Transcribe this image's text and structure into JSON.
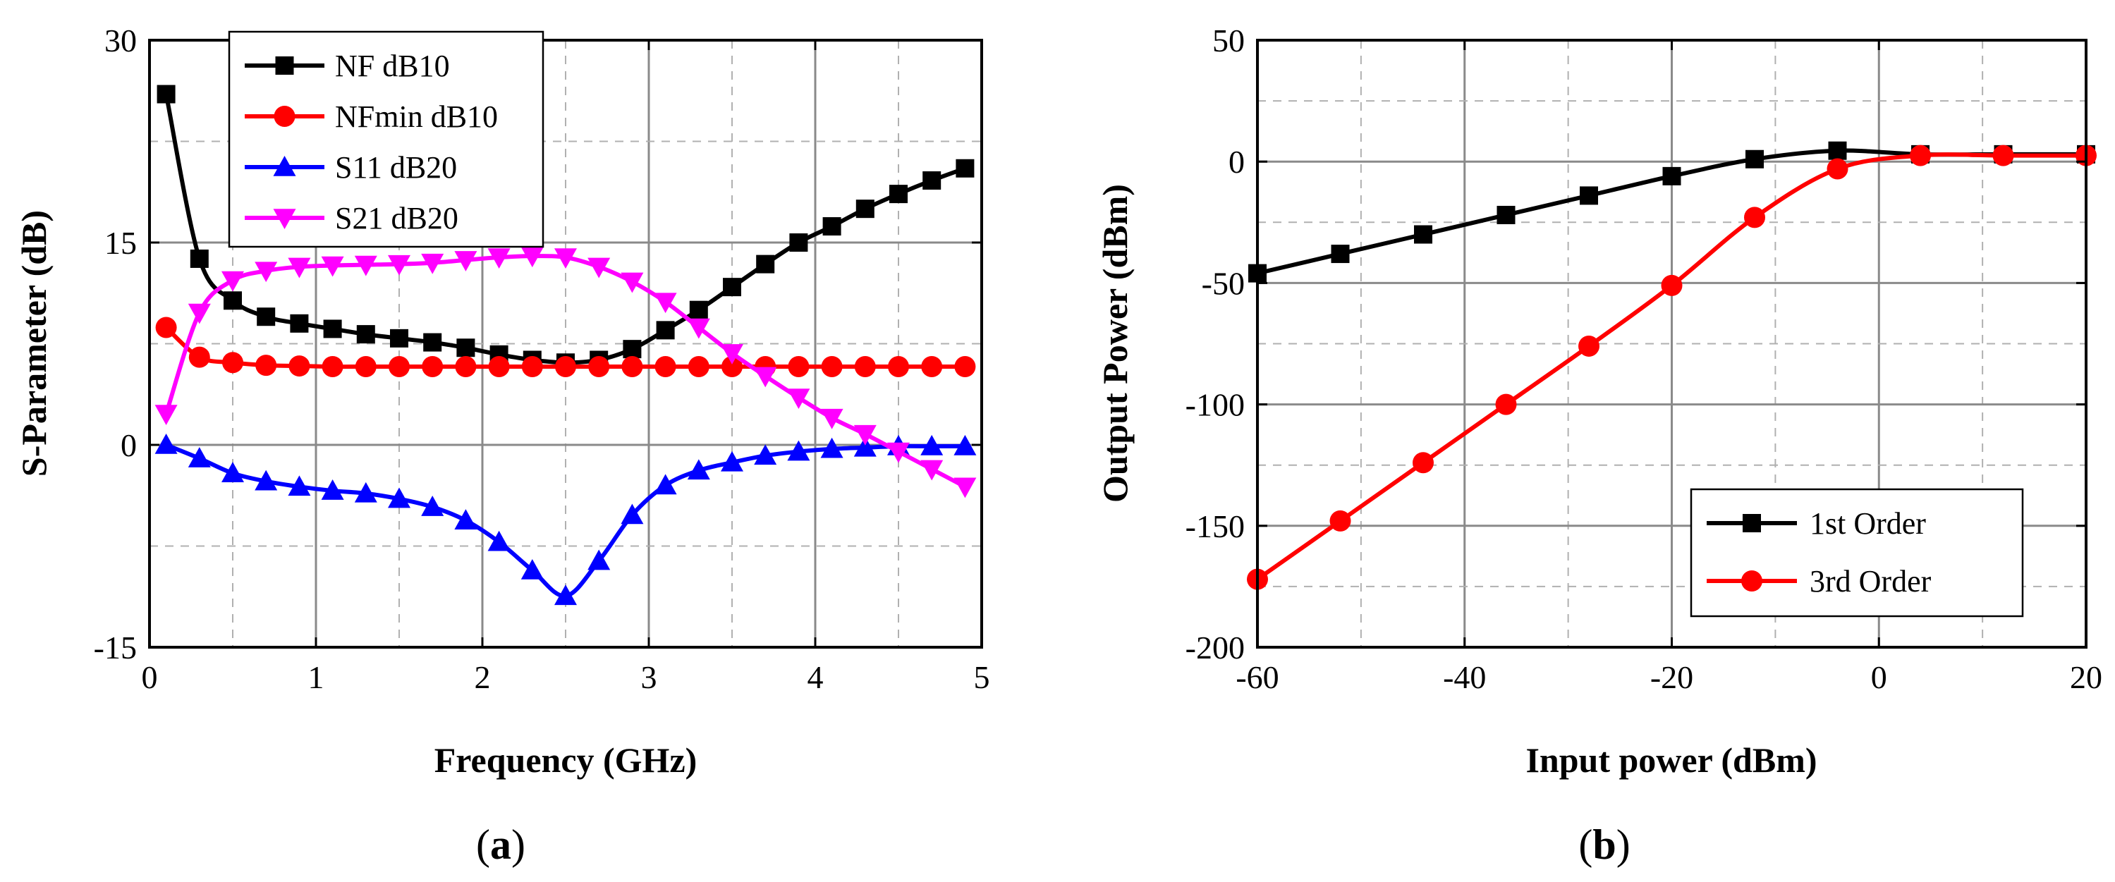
{
  "chart_data": [
    {
      "panel_label": "a",
      "type": "line",
      "title": "",
      "xlabel": "Frequency (GHz)",
      "ylabel": "S-Parameter (dB)",
      "xlim": [
        0,
        5
      ],
      "ylim": [
        -15,
        30
      ],
      "xticks": [
        0,
        1,
        2,
        3,
        4,
        5
      ],
      "xtick_labels": [
        "0",
        "1",
        "2",
        "3",
        "4",
        "5"
      ],
      "yticks": [
        -15,
        0,
        15,
        30
      ],
      "ytick_labels": [
        "-15",
        "0",
        "15",
        "30"
      ],
      "minor_x_step": 0.5,
      "minor_y_step": 7.5,
      "grid": true,
      "legend_position": "top-left",
      "series": [
        {
          "name": "NF dB10",
          "color": "#000000",
          "marker": "square",
          "x": [
            0.1,
            0.3,
            0.5,
            0.7,
            0.9,
            1.1,
            1.3,
            1.5,
            1.7,
            1.9,
            2.1,
            2.3,
            2.5,
            2.7,
            2.9,
            3.1,
            3.3,
            3.5,
            3.7,
            3.9,
            4.1,
            4.3,
            4.5,
            4.7,
            4.9
          ],
          "values": [
            26.0,
            13.8,
            10.7,
            9.5,
            9.0,
            8.6,
            8.2,
            7.9,
            7.6,
            7.2,
            6.7,
            6.3,
            6.1,
            6.3,
            7.1,
            8.5,
            10.0,
            11.7,
            13.4,
            15.0,
            16.2,
            17.5,
            18.6,
            19.6,
            20.5
          ]
        },
        {
          "name": "NFmin dB10",
          "color": "#ff0000",
          "marker": "circle",
          "x": [
            0.1,
            0.3,
            0.5,
            0.7,
            0.9,
            1.1,
            1.3,
            1.5,
            1.7,
            1.9,
            2.1,
            2.3,
            2.5,
            2.7,
            2.9,
            3.1,
            3.3,
            3.5,
            3.7,
            3.9,
            4.1,
            4.3,
            4.5,
            4.7,
            4.9
          ],
          "values": [
            8.7,
            6.5,
            6.1,
            5.9,
            5.85,
            5.8,
            5.8,
            5.8,
            5.8,
            5.8,
            5.8,
            5.8,
            5.8,
            5.8,
            5.8,
            5.8,
            5.8,
            5.8,
            5.8,
            5.8,
            5.8,
            5.8,
            5.8,
            5.8,
            5.8
          ]
        },
        {
          "name": "S11 dB20",
          "color": "#0000ff",
          "marker": "triangle-up",
          "x": [
            0.1,
            0.3,
            0.5,
            0.7,
            0.9,
            1.1,
            1.3,
            1.5,
            1.7,
            1.9,
            2.1,
            2.3,
            2.5,
            2.7,
            2.9,
            3.1,
            3.3,
            3.5,
            3.7,
            3.9,
            4.1,
            4.3,
            4.5,
            4.7,
            4.9
          ],
          "values": [
            0.0,
            -1.0,
            -2.1,
            -2.7,
            -3.1,
            -3.4,
            -3.6,
            -4.0,
            -4.6,
            -5.6,
            -7.2,
            -9.3,
            -11.2,
            -8.6,
            -5.2,
            -3.0,
            -1.9,
            -1.3,
            -0.8,
            -0.5,
            -0.3,
            -0.2,
            -0.1,
            -0.1,
            -0.1
          ]
        },
        {
          "name": "S21 dB20",
          "color": "#ff00ff",
          "marker": "triangle-down",
          "x": [
            0.1,
            0.3,
            0.5,
            0.7,
            0.9,
            1.1,
            1.3,
            1.5,
            1.7,
            1.9,
            2.1,
            2.3,
            2.5,
            2.7,
            2.9,
            3.1,
            3.3,
            3.5,
            3.7,
            3.9,
            4.1,
            4.3,
            4.5,
            4.7,
            4.9
          ],
          "values": [
            2.3,
            9.8,
            12.2,
            12.9,
            13.2,
            13.3,
            13.35,
            13.4,
            13.5,
            13.7,
            13.9,
            14.0,
            13.9,
            13.2,
            12.1,
            10.6,
            8.7,
            6.8,
            5.1,
            3.5,
            2.0,
            0.8,
            -0.5,
            -1.8,
            -3.1
          ]
        }
      ]
    },
    {
      "panel_label": "b",
      "type": "line",
      "title": "",
      "xlabel": "Input power (dBm)",
      "ylabel": "Output Power (dBm)",
      "xlim": [
        -60,
        20
      ],
      "ylim": [
        -200,
        50
      ],
      "xticks": [
        -60,
        -40,
        -20,
        0,
        20
      ],
      "xtick_labels": [
        "-60",
        "-40",
        "-20",
        "0",
        "20"
      ],
      "yticks": [
        -200,
        -150,
        -100,
        -50,
        0,
        50
      ],
      "ytick_labels": [
        "-200",
        "-150",
        "-100",
        "-50",
        "0",
        "50"
      ],
      "minor_x_step": 10,
      "minor_y_step": 25,
      "grid": true,
      "legend_position": "bottom-right",
      "series": [
        {
          "name": "1st Order",
          "color": "#000000",
          "marker": "square",
          "x": [
            -60,
            -52,
            -44,
            -36,
            -28,
            -20,
            -12,
            -4,
            4,
            12,
            20
          ],
          "values": [
            -46,
            -38,
            -30,
            -22,
            -14,
            -6,
            1,
            4.5,
            3,
            3,
            3
          ]
        },
        {
          "name": "3rd Order",
          "color": "#ff0000",
          "marker": "circle",
          "x": [
            -60,
            -52,
            -44,
            -36,
            -28,
            -20,
            -12,
            -4,
            4,
            12,
            20
          ],
          "values": [
            -172,
            -148,
            -124,
            -100,
            -76,
            -51,
            -23,
            -3,
            2.5,
            2.5,
            2.5
          ]
        }
      ]
    }
  ]
}
